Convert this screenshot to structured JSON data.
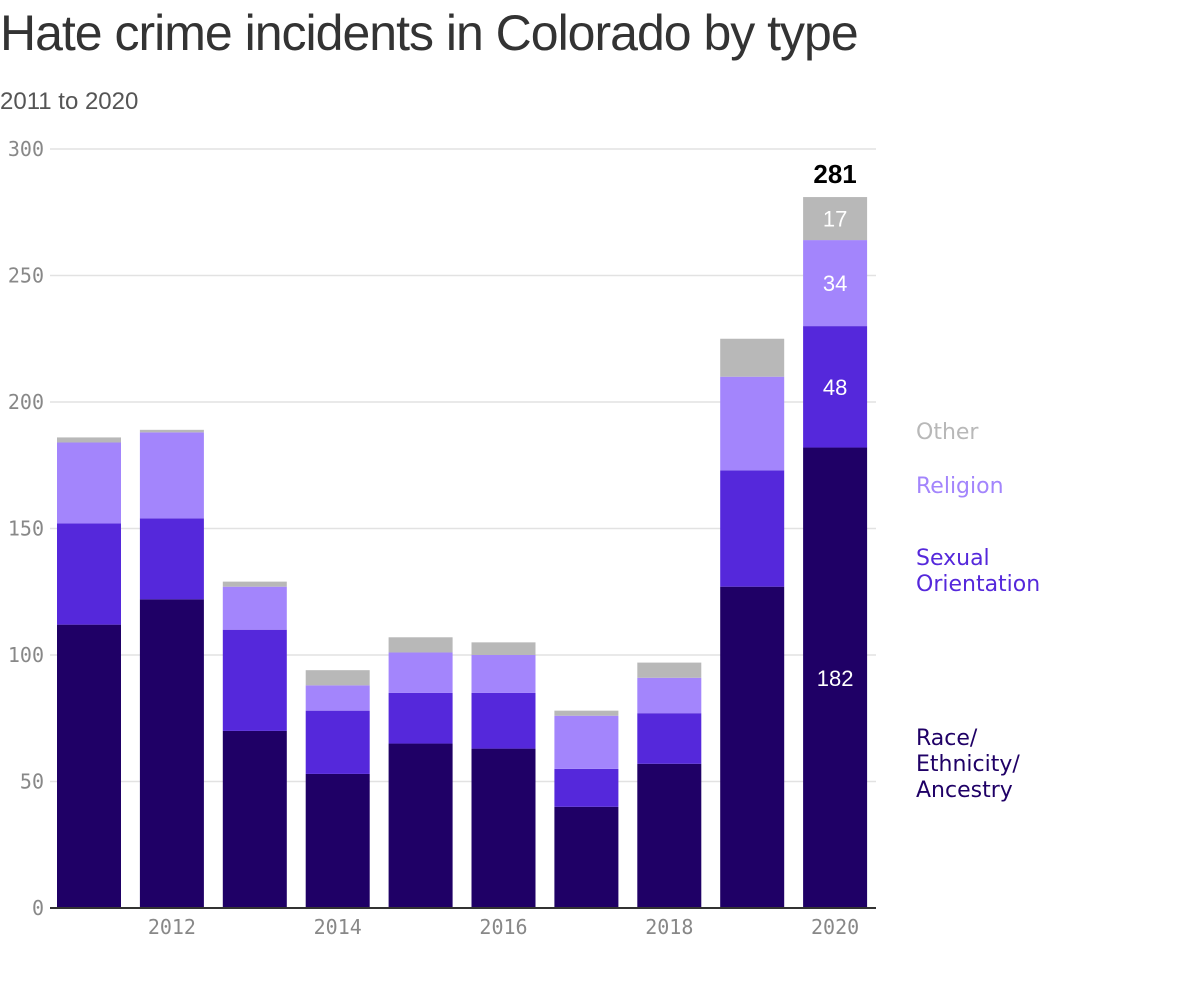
{
  "title": "Hate crime incidents in Colorado by type",
  "subtitle": "2011 to 2020",
  "colors": {
    "race": "#1f0066",
    "sexual": "#5528db",
    "religion": "#a385fc",
    "other": "#b8b8b8",
    "grid": "#e2e2e2",
    "axis": "#333333"
  },
  "legend": {
    "other": "Other",
    "religion": "Religion",
    "sexual": "Sexual\nOrientation",
    "race": "Race/\nEthnicity/\nAncestry"
  },
  "chart_data": {
    "type": "bar",
    "stacked": true,
    "title": "Hate crime incidents in Colorado by type",
    "subtitle": "2011 to 2020",
    "categories": [
      "2011",
      "2012",
      "2013",
      "2014",
      "2015",
      "2016",
      "2017",
      "2018",
      "2019",
      "2020"
    ],
    "x_tick_labels": [
      "2012",
      "2014",
      "2016",
      "2018",
      "2020"
    ],
    "y_ticks": [
      0,
      50,
      100,
      150,
      200,
      250,
      300
    ],
    "ylim": [
      0,
      300
    ],
    "grid": true,
    "legend_placement": "right",
    "series": [
      {
        "name": "Race/Ethnicity/Ancestry",
        "key": "race",
        "values": [
          112,
          122,
          70,
          53,
          65,
          63,
          40,
          57,
          127,
          182
        ]
      },
      {
        "name": "Sexual Orientation",
        "key": "sexual",
        "values": [
          40,
          32,
          40,
          25,
          20,
          22,
          15,
          20,
          46,
          48
        ]
      },
      {
        "name": "Religion",
        "key": "religion",
        "values": [
          32,
          34,
          17,
          10,
          16,
          15,
          21,
          14,
          37,
          34
        ]
      },
      {
        "name": "Other",
        "key": "other",
        "values": [
          2,
          1,
          2,
          6,
          6,
          5,
          2,
          6,
          15,
          17
        ]
      }
    ],
    "annotations": {
      "category": "2020",
      "total": "281",
      "labels": {
        "race": "182",
        "sexual": "48",
        "religion": "34",
        "other": "17"
      }
    }
  }
}
